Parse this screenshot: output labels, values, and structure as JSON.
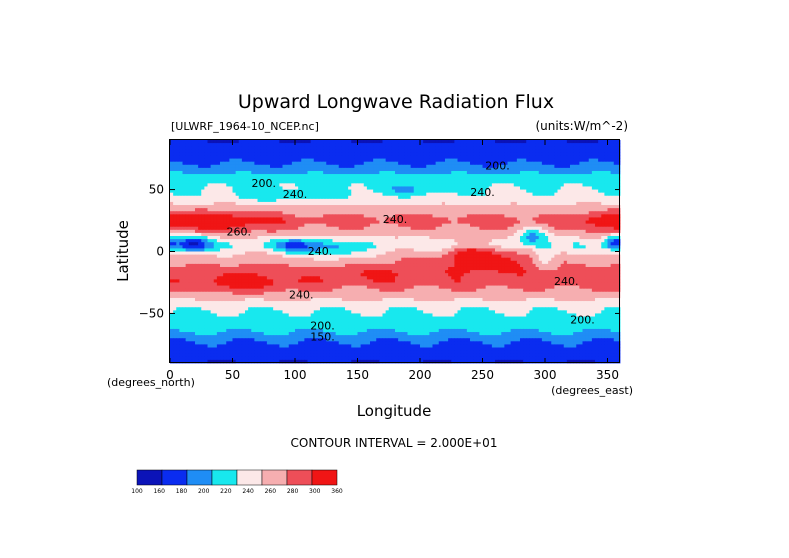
{
  "chart_data": {
    "type": "heatmap",
    "title": "Upward Longwave Radiation Flux",
    "dataset_label": "[ULWRF_1964-10_NCEP.nc]",
    "units_label": "(units:W/m^-2)",
    "xlabel": "Longitude",
    "ylabel": "Latitude",
    "x_unit_label": "(degrees_east)",
    "y_unit_label": "(degrees_north)",
    "xlim": [
      0,
      360
    ],
    "ylim": [
      -90,
      90
    ],
    "x_ticks": [
      0,
      50,
      100,
      150,
      200,
      250,
      300,
      350
    ],
    "y_ticks": [
      50,
      0,
      -50
    ],
    "x_tick_labels": [
      "0",
      "50",
      "100",
      "150",
      "200",
      "250",
      "300",
      "350"
    ],
    "y_tick_labels": [
      "50",
      "0",
      "−50"
    ],
    "contour_interval_text": "CONTOUR INTERVAL = 2.000E+01",
    "contour_labels": [
      {
        "text": "200.",
        "lon": 262,
        "lat": 66
      },
      {
        "text": "200.",
        "lon": 75,
        "lat": 52
      },
      {
        "text": "240.",
        "lon": 100,
        "lat": 43
      },
      {
        "text": "240.",
        "lon": 250,
        "lat": 45
      },
      {
        "text": "240.",
        "lon": 180,
        "lat": 23
      },
      {
        "text": "260.",
        "lon": 55,
        "lat": 13
      },
      {
        "text": "240.",
        "lon": 120,
        "lat": -3
      },
      {
        "text": "240.",
        "lon": 105,
        "lat": -38
      },
      {
        "text": "200.",
        "lon": 122,
        "lat": -63
      },
      {
        "text": "150.",
        "lon": 122,
        "lat": -72
      },
      {
        "text": "240.",
        "lon": 317,
        "lat": -27
      },
      {
        "text": "200.",
        "lon": 330,
        "lat": -58
      }
    ],
    "colorbar": {
      "levels": [
        100,
        160,
        180,
        200,
        220,
        240,
        260,
        280,
        300,
        360
      ],
      "labels": [
        "100",
        "160",
        "180",
        "200",
        "220",
        "240",
        "260",
        "280",
        "300",
        "360"
      ],
      "colors": [
        "#0b13b8",
        "#0a2cf0",
        "#1f8df5",
        "#18e8ee",
        "#fce8e8",
        "#f6aeb0",
        "#ee4e58",
        "#f01515"
      ]
    },
    "zonal_profile": [
      {
        "lat": 90,
        "value": 160
      },
      {
        "lat": 75,
        "value": 170
      },
      {
        "lat": 65,
        "value": 195
      },
      {
        "lat": 55,
        "value": 215
      },
      {
        "lat": 45,
        "value": 225
      },
      {
        "lat": 35,
        "value": 245
      },
      {
        "lat": 25,
        "value": 270
      },
      {
        "lat": 15,
        "value": 250
      },
      {
        "lat": 5,
        "value": 220
      },
      {
        "lat": -5,
        "value": 250
      },
      {
        "lat": -15,
        "value": 265
      },
      {
        "lat": -25,
        "value": 270
      },
      {
        "lat": -35,
        "value": 250
      },
      {
        "lat": -45,
        "value": 225
      },
      {
        "lat": -55,
        "value": 210
      },
      {
        "lat": -65,
        "value": 200
      },
      {
        "lat": -75,
        "value": 175
      },
      {
        "lat": -90,
        "value": 160
      }
    ],
    "features": [
      {
        "lon": 40,
        "lat": 24,
        "dlon": 40,
        "dlat": 9,
        "delta": 35
      },
      {
        "lon": 18,
        "lat": 6,
        "dlon": 14,
        "dlat": 7,
        "delta": -75
      },
      {
        "lon": 100,
        "lat": 5,
        "dlon": 20,
        "dlat": 6,
        "delta": -45
      },
      {
        "lon": 130,
        "lat": 0,
        "dlon": 18,
        "dlat": 8,
        "delta": -35
      },
      {
        "lon": 255,
        "lat": -5,
        "dlon": 45,
        "dlat": 12,
        "delta": 40
      },
      {
        "lon": 240,
        "lat": -2,
        "dlon": 12,
        "dlat": 4,
        "delta": 30
      },
      {
        "lon": 290,
        "lat": 12,
        "dlon": 12,
        "dlat": 7,
        "delta": -50
      },
      {
        "lon": 300,
        "lat": -5,
        "dlon": 10,
        "dlat": 9,
        "delta": -40
      },
      {
        "lon": 350,
        "lat": 24,
        "dlon": 20,
        "dlat": 9,
        "delta": 30
      },
      {
        "lon": 356,
        "lat": 7,
        "dlon": 8,
        "dlat": 6,
        "delta": -60
      },
      {
        "lon": 95,
        "lat": 45,
        "dlon": 45,
        "dlat": 5,
        "delta": -20
      },
      {
        "lon": 195,
        "lat": 50,
        "dlon": 30,
        "dlat": 4,
        "delta": -20
      },
      {
        "lon": 60,
        "lat": -25,
        "dlon": 40,
        "dlat": 8,
        "delta": 25
      },
      {
        "lon": 160,
        "lat": -18,
        "dlon": 40,
        "dlat": 6,
        "delta": 15
      }
    ]
  }
}
